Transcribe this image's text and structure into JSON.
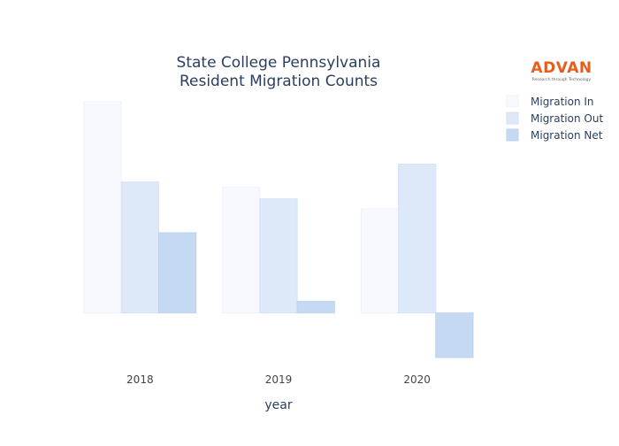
{
  "chart_data": {
    "type": "bar",
    "title_lines": [
      "State College Pennsylvania",
      "Resident Migration Counts"
    ],
    "xlabel": "year",
    "ylabel": "",
    "categories": [
      "2018",
      "2019",
      "2020"
    ],
    "series": [
      {
        "name": "Migration In",
        "values": [
          2370,
          1410,
          1170
        ],
        "color": "#f7f9fe",
        "stroke": "#eef2fb"
      },
      {
        "name": "Migration Out",
        "values": [
          1470,
          1280,
          1670
        ],
        "color": "#dde8f8",
        "stroke": "#d6e2f6"
      },
      {
        "name": "Migration Net",
        "values": [
          900,
          130,
          -500
        ],
        "color": "#c5daf2",
        "stroke": "#bcd3ef"
      }
    ],
    "ylim": [
      -500,
      2370
    ],
    "grid": false,
    "legend_position": "top-right",
    "logo": {
      "text": "ADVAN",
      "tagline": "Research through Technology",
      "color": "#e85d1c"
    },
    "colors": {
      "title": "#2a3f5f",
      "axis_text": "#2a3f5f",
      "tick_text": "#444444"
    }
  }
}
